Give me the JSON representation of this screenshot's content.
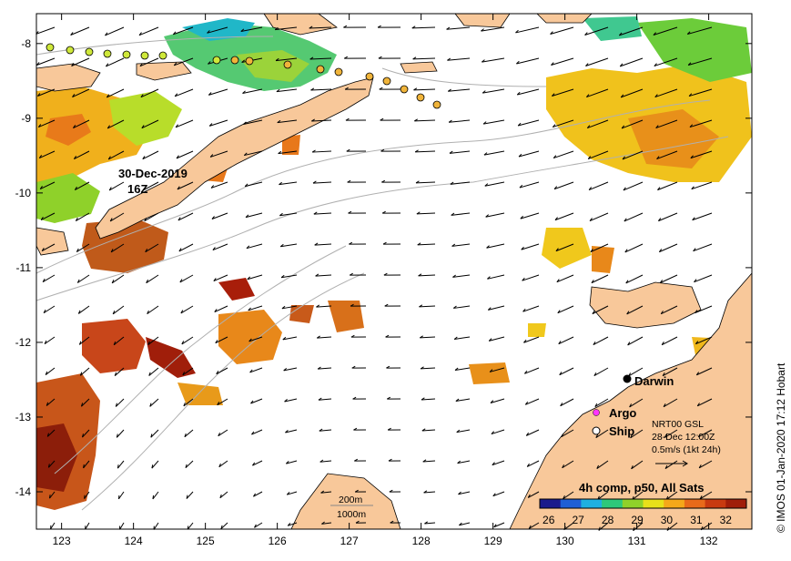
{
  "map": {
    "lon_ticks": [
      "123",
      "124",
      "125",
      "126",
      "127",
      "128",
      "129",
      "130",
      "131",
      "132"
    ],
    "lat_ticks": [
      "-8",
      "-9",
      "-10",
      "-11",
      "-12",
      "-13",
      "-14"
    ],
    "lon_range": [
      122.65,
      132.6
    ],
    "lat_range": [
      -14.5,
      -7.6
    ],
    "date_annotation_line1": "30-Dec-2019",
    "date_annotation_line2": "16Z",
    "city_label": "Darwin",
    "legend": {
      "argo_label": "Argo",
      "ship_label": "Ship",
      "argo_color": "#ff33ff",
      "ship_color": "#ffcc33"
    },
    "current_info": {
      "line1": "NRT00 GSL",
      "line2": "28-Dec 12:00Z",
      "line3": "0.5m/s (1kt 24h)"
    },
    "bathy_legend": {
      "label_200": "200m",
      "label_1000": "1000m"
    },
    "colorbar": {
      "title": "4h comp, p50, All Sats",
      "ticks": [
        "26",
        "27",
        "28",
        "29",
        "30",
        "31",
        "32"
      ],
      "colors": [
        "#1a1a8c",
        "#1f5fd6",
        "#1fb0e0",
        "#2ec87a",
        "#8fd12a",
        "#e8e01a",
        "#f5a81a",
        "#e86a1a",
        "#c83a10",
        "#a01e0a"
      ]
    },
    "credit": "© IMOS 01-Jan-2020 17:12 Hobart",
    "colors": {
      "land": "#f8c89a",
      "ocean": "#ffffff",
      "contour": "#b0b0b0"
    }
  }
}
